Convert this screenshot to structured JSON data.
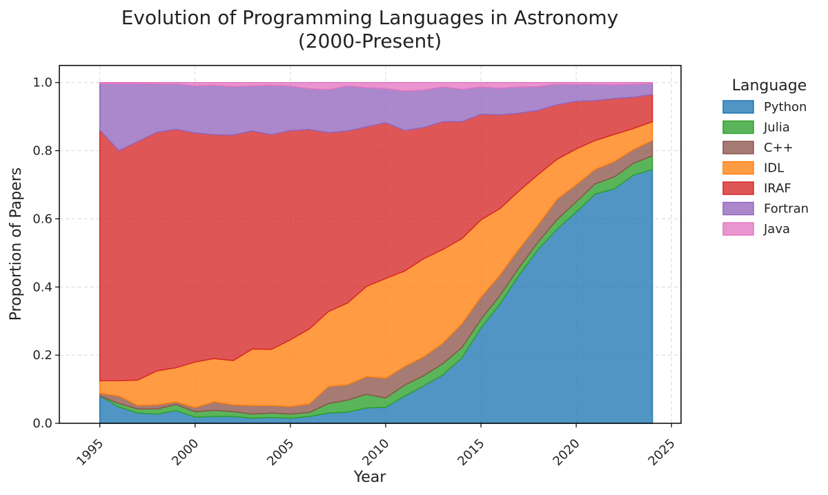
{
  "chart_data": {
    "type": "area",
    "title_line1": "Evolution of Programming Languages in Astronomy",
    "title_line2": "(2000-Present)",
    "xlabel": "Year",
    "ylabel": "Proportion of Papers",
    "xlim": [
      1992.875,
      2025.5
    ],
    "ylim": [
      0,
      1.05
    ],
    "xticks": [
      "1995",
      "2000",
      "2005",
      "2010",
      "2015",
      "2020",
      "2025"
    ],
    "yticks": [
      "0.0",
      "0.2",
      "0.4",
      "0.6",
      "0.8",
      "1.0"
    ],
    "grid": true,
    "legend": {
      "title": "Language",
      "placement": "outside-right"
    },
    "x": [
      1995,
      1996,
      1997,
      1998,
      1999,
      2000,
      2001,
      2002,
      2003,
      2004,
      2005,
      2006,
      2007,
      2008,
      2009,
      2010,
      2011,
      2012,
      2013,
      2014,
      2015,
      2016,
      2017,
      2018,
      2019,
      2020,
      2021,
      2022,
      2023,
      2024
    ],
    "series": [
      {
        "name": "Python",
        "color": "#1f77b4",
        "values": [
          0.08,
          0.048,
          0.03,
          0.027,
          0.037,
          0.018,
          0.02,
          0.02,
          0.015,
          0.017,
          0.015,
          0.02,
          0.03,
          0.033,
          0.045,
          0.047,
          0.08,
          0.11,
          0.142,
          0.192,
          0.28,
          0.35,
          0.435,
          0.51,
          0.57,
          0.62,
          0.673,
          0.688,
          0.728,
          0.745
        ]
      },
      {
        "name": "Julia",
        "color": "#2ca02c",
        "values": [
          0.0,
          0.01,
          0.012,
          0.015,
          0.018,
          0.016,
          0.018,
          0.014,
          0.012,
          0.013,
          0.012,
          0.012,
          0.028,
          0.035,
          0.04,
          0.027,
          0.032,
          0.03,
          0.033,
          0.03,
          0.025,
          0.025,
          0.022,
          0.022,
          0.028,
          0.03,
          0.03,
          0.035,
          0.035,
          0.04
        ]
      },
      {
        "name": "C++",
        "color": "#8c564b",
        "values": [
          0.008,
          0.022,
          0.01,
          0.012,
          0.008,
          0.012,
          0.025,
          0.02,
          0.025,
          0.022,
          0.022,
          0.025,
          0.05,
          0.045,
          0.052,
          0.058,
          0.055,
          0.055,
          0.06,
          0.07,
          0.065,
          0.06,
          0.055,
          0.05,
          0.06,
          0.05,
          0.042,
          0.045,
          0.04,
          0.045
        ]
      },
      {
        "name": "IDL",
        "color": "#ff7f0e",
        "values": [
          0.037,
          0.045,
          0.075,
          0.1,
          0.1,
          0.134,
          0.127,
          0.13,
          0.166,
          0.165,
          0.196,
          0.22,
          0.22,
          0.24,
          0.265,
          0.293,
          0.28,
          0.288,
          0.275,
          0.25,
          0.227,
          0.195,
          0.17,
          0.148,
          0.117,
          0.105,
          0.085,
          0.08,
          0.062,
          0.055
        ]
      },
      {
        "name": "IRAF",
        "color": "#d62728",
        "values": [
          0.735,
          0.675,
          0.7,
          0.7,
          0.7,
          0.672,
          0.657,
          0.662,
          0.64,
          0.63,
          0.614,
          0.585,
          0.525,
          0.505,
          0.468,
          0.457,
          0.412,
          0.385,
          0.375,
          0.343,
          0.31,
          0.275,
          0.228,
          0.188,
          0.16,
          0.14,
          0.117,
          0.105,
          0.092,
          0.08
        ]
      },
      {
        "name": "Fortran",
        "color": "#9467bd",
        "values": [
          0.137,
          0.197,
          0.17,
          0.142,
          0.133,
          0.138,
          0.145,
          0.142,
          0.132,
          0.145,
          0.13,
          0.12,
          0.126,
          0.132,
          0.115,
          0.1,
          0.116,
          0.11,
          0.102,
          0.095,
          0.08,
          0.078,
          0.077,
          0.07,
          0.06,
          0.05,
          0.047,
          0.04,
          0.038,
          0.032
        ]
      },
      {
        "name": "Java",
        "color": "#e377c2",
        "values": [
          0.003,
          0.003,
          0.003,
          0.004,
          0.004,
          0.01,
          0.008,
          0.012,
          0.01,
          0.008,
          0.011,
          0.018,
          0.021,
          0.01,
          0.015,
          0.018,
          0.025,
          0.022,
          0.013,
          0.02,
          0.013,
          0.017,
          0.013,
          0.012,
          0.005,
          0.005,
          0.006,
          0.007,
          0.005,
          0.003
        ]
      }
    ]
  }
}
